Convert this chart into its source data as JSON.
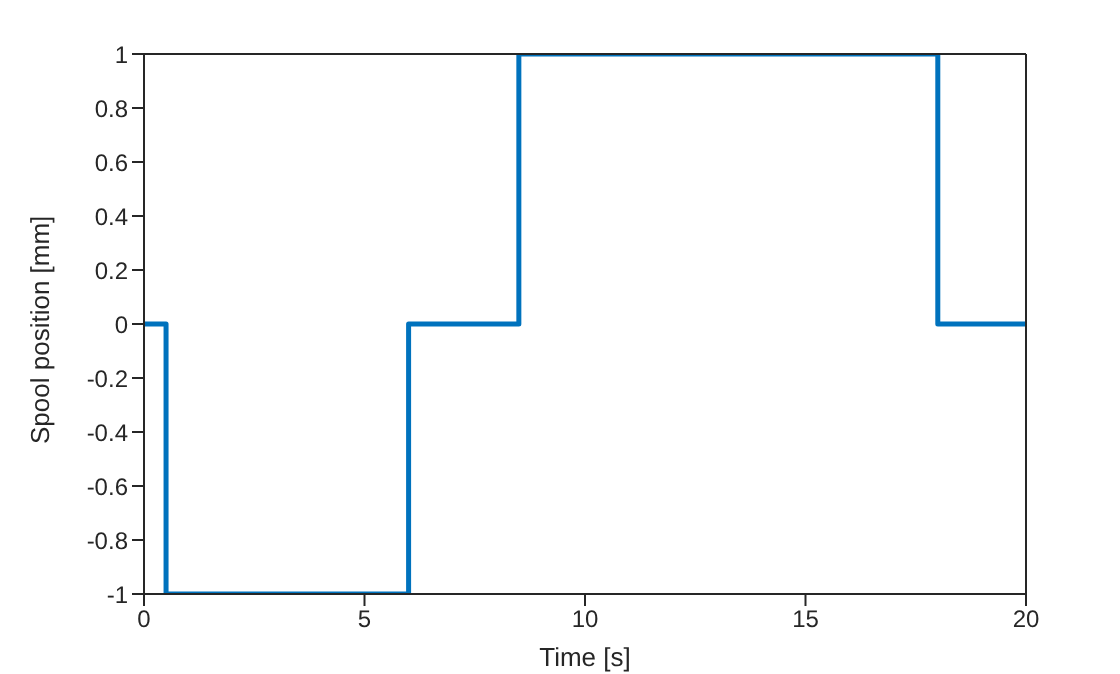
{
  "chart_data": {
    "type": "step",
    "xlabel": "Time [s]",
    "ylabel": "Spool position [mm]",
    "x": [
      0,
      0.5,
      6,
      8.5,
      18,
      20
    ],
    "series": [
      {
        "color": "#0072bd",
        "values": [
          0,
          -1,
          0,
          1,
          0,
          0
        ]
      }
    ],
    "xlim": [
      0,
      20
    ],
    "xticks": [
      0,
      5,
      10,
      15,
      20
    ],
    "ylim": [
      -1,
      1
    ],
    "yticks": [
      -1,
      -0.8,
      -0.6,
      -0.4,
      -0.2,
      0,
      0.2,
      0.4,
      0.6,
      0.8,
      1
    ],
    "grid": false,
    "legend": false
  }
}
